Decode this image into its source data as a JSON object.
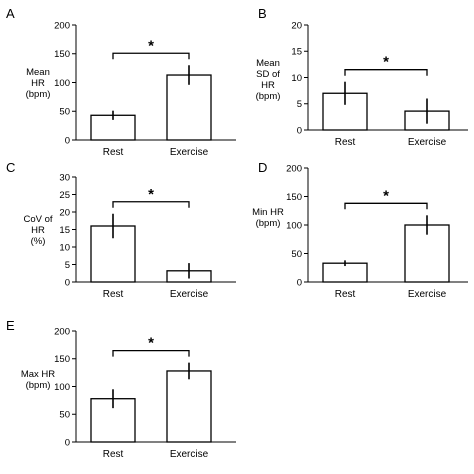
{
  "chart_data": [
    {
      "panel": "A",
      "type": "bar",
      "ylabel_lines": [
        "Mean",
        "HR",
        "(bpm)"
      ],
      "categories": [
        "Rest",
        "Exercise"
      ],
      "values": [
        43,
        113
      ],
      "errors": [
        8,
        17
      ],
      "ylim": [
        0,
        200
      ],
      "yticks": [
        0,
        50,
        100,
        150,
        200
      ],
      "significance": "*",
      "grid": false
    },
    {
      "panel": "B",
      "type": "bar",
      "ylabel_lines": [
        "Mean",
        "SD of",
        "HR",
        "(bpm)"
      ],
      "categories": [
        "Rest",
        "Exercise"
      ],
      "values": [
        7,
        3.6
      ],
      "errors": [
        2.2,
        2.4
      ],
      "ylim": [
        0,
        20
      ],
      "yticks": [
        0,
        5,
        10,
        15,
        20
      ],
      "significance": "*",
      "grid": false
    },
    {
      "panel": "C",
      "type": "bar",
      "ylabel_lines": [
        "CoV of",
        "HR",
        "(%)"
      ],
      "categories": [
        "Rest",
        "Exercise"
      ],
      "values": [
        16,
        3.2
      ],
      "errors": [
        3.5,
        2.2
      ],
      "ylim": [
        0,
        30
      ],
      "yticks": [
        0,
        5,
        10,
        15,
        20,
        25,
        30
      ],
      "significance": "*",
      "grid": false
    },
    {
      "panel": "D",
      "type": "bar",
      "ylabel_lines": [
        "Min HR",
        "(bpm)"
      ],
      "categories": [
        "Rest",
        "Exercise"
      ],
      "values": [
        33,
        100
      ],
      "errors": [
        5,
        17
      ],
      "ylim": [
        0,
        200
      ],
      "yticks": [
        0,
        50,
        100,
        150,
        200
      ],
      "significance": "*",
      "grid": false
    },
    {
      "panel": "E",
      "type": "bar",
      "ylabel_lines": [
        "Max HR",
        "(bpm)"
      ],
      "categories": [
        "Rest",
        "Exercise"
      ],
      "values": [
        78,
        128
      ],
      "errors": [
        17,
        15
      ],
      "ylim": [
        0,
        200
      ],
      "yticks": [
        0,
        50,
        100,
        150,
        200
      ],
      "significance": "*",
      "grid": false
    }
  ]
}
